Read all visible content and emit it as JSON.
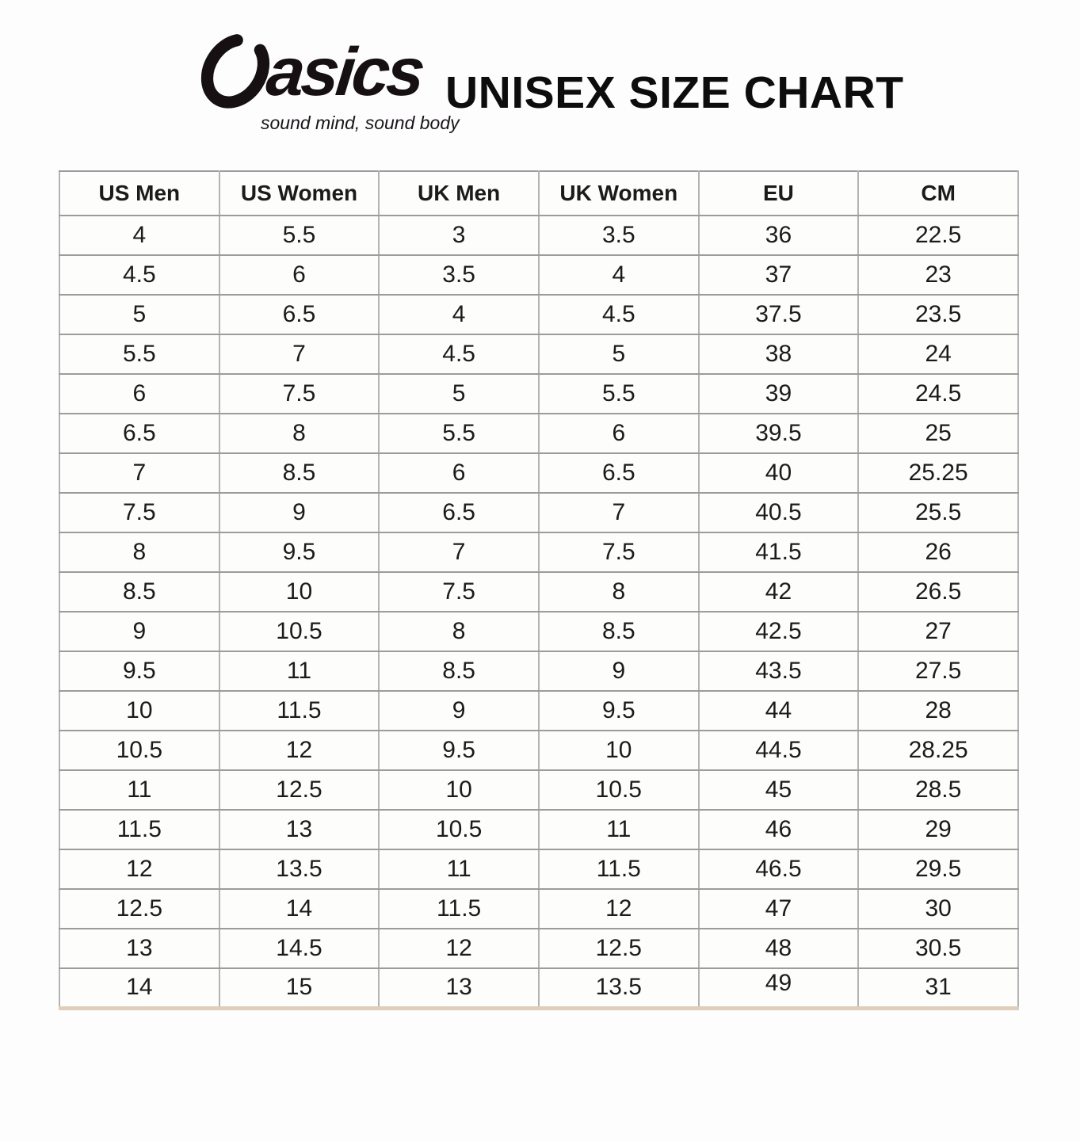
{
  "brand": {
    "wordmark": "asics",
    "tagline": "sound mind, sound body",
    "logo_color": "#161013"
  },
  "page": {
    "title": "UNISEX SIZE CHART"
  },
  "table": {
    "columns": [
      "US Men",
      "US Women",
      "UK Men",
      "UK Women",
      "EU",
      "CM"
    ],
    "rows": [
      [
        "4",
        "5.5",
        "3",
        "3.5",
        "36",
        "22.5"
      ],
      [
        "4.5",
        "6",
        "3.5",
        "4",
        "37",
        "23"
      ],
      [
        "5",
        "6.5",
        "4",
        "4.5",
        "37.5",
        "23.5"
      ],
      [
        "5.5",
        "7",
        "4.5",
        "5",
        "38",
        "24"
      ],
      [
        "6",
        "7.5",
        "5",
        "5.5",
        "39",
        "24.5"
      ],
      [
        "6.5",
        "8",
        "5.5",
        "6",
        "39.5",
        "25"
      ],
      [
        "7",
        "8.5",
        "6",
        "6.5",
        "40",
        "25.25"
      ],
      [
        "7.5",
        "9",
        "6.5",
        "7",
        "40.5",
        "25.5"
      ],
      [
        "8",
        "9.5",
        "7",
        "7.5",
        "41.5",
        "26"
      ],
      [
        "8.5",
        "10",
        "7.5",
        "8",
        "42",
        "26.5"
      ],
      [
        "9",
        "10.5",
        "8",
        "8.5",
        "42.5",
        "27"
      ],
      [
        "9.5",
        "11",
        "8.5",
        "9",
        "43.5",
        "27.5"
      ],
      [
        "10",
        "11.5",
        "9",
        "9.5",
        "44",
        "28"
      ],
      [
        "10.5",
        "12",
        "9.5",
        "10",
        "44.5",
        "28.25"
      ],
      [
        "11",
        "12.5",
        "10",
        "10.5",
        "45",
        "28.5"
      ],
      [
        "11.5",
        "13",
        "10.5",
        "11",
        "46",
        "29"
      ],
      [
        "12",
        "13.5",
        "11",
        "11.5",
        "46.5",
        "29.5"
      ],
      [
        "12.5",
        "14",
        "11.5",
        "12",
        "47",
        "30"
      ],
      [
        "13",
        "14.5",
        "12",
        "12.5",
        "48",
        "30.5"
      ],
      [
        "14",
        "15",
        "13",
        "13.5",
        "49",
        "31"
      ]
    ]
  }
}
